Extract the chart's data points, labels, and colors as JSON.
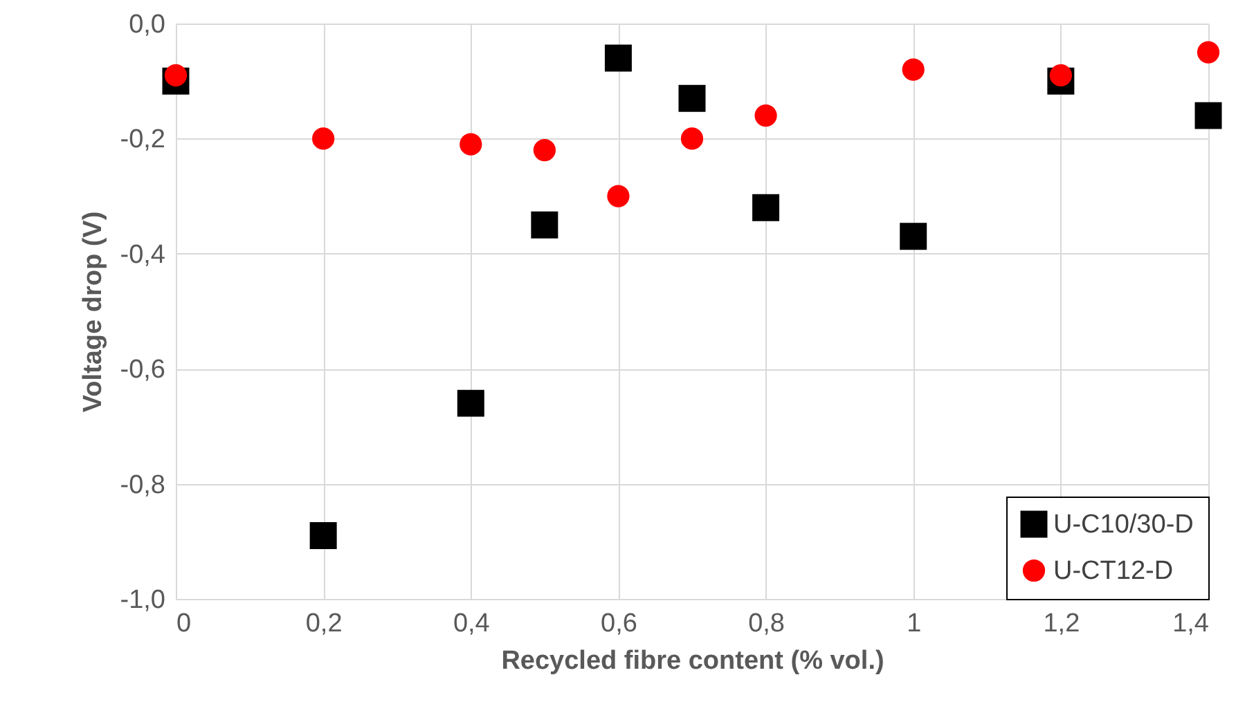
{
  "chart_data": {
    "type": "scatter",
    "xlabel": "Recycled fibre content (%  vol.)",
    "ylabel": "Voltage drop (V)",
    "x": [
      0,
      0.2,
      0.4,
      0.5,
      0.6,
      0.7,
      0.8,
      1.0,
      1.2,
      1.4
    ],
    "series": [
      {
        "name": "U-C10/30-D",
        "color": "#000000",
        "marker": "square",
        "values": [
          -0.1,
          -0.89,
          -0.66,
          -0.35,
          -0.06,
          -0.13,
          -0.32,
          -0.37,
          -0.1,
          -0.16
        ]
      },
      {
        "name": "U-CT12-D",
        "color": "#ff0000",
        "marker": "circle",
        "values": [
          -0.09,
          -0.2,
          -0.21,
          -0.22,
          -0.3,
          -0.2,
          -0.16,
          -0.08,
          -0.09,
          -0.05
        ]
      }
    ],
    "xlim": [
      0,
      1.4
    ],
    "xticks": [
      0,
      {
        "value": 0.2,
        "label": "0,2"
      },
      {
        "value": 0.4,
        "label": "0,4"
      },
      {
        "value": 0.6,
        "label": "0,6"
      },
      {
        "value": 0.8,
        "label": "0,8"
      },
      1,
      {
        "value": 1.2,
        "label": "1,2"
      },
      {
        "value": 1.4,
        "label": "1,4"
      }
    ],
    "ylim": [
      -1.0,
      0.0
    ],
    "yticks": [
      {
        "value": -1.0,
        "label": "-1,0"
      },
      {
        "value": -0.8,
        "label": "-0,8"
      },
      {
        "value": -0.6,
        "label": "-0,6"
      },
      {
        "value": -0.4,
        "label": "-0,4"
      },
      {
        "value": -0.2,
        "label": "-0,2"
      },
      {
        "value": 0,
        "label": "0,0"
      }
    ],
    "grid": true,
    "legend": "bottom right"
  }
}
